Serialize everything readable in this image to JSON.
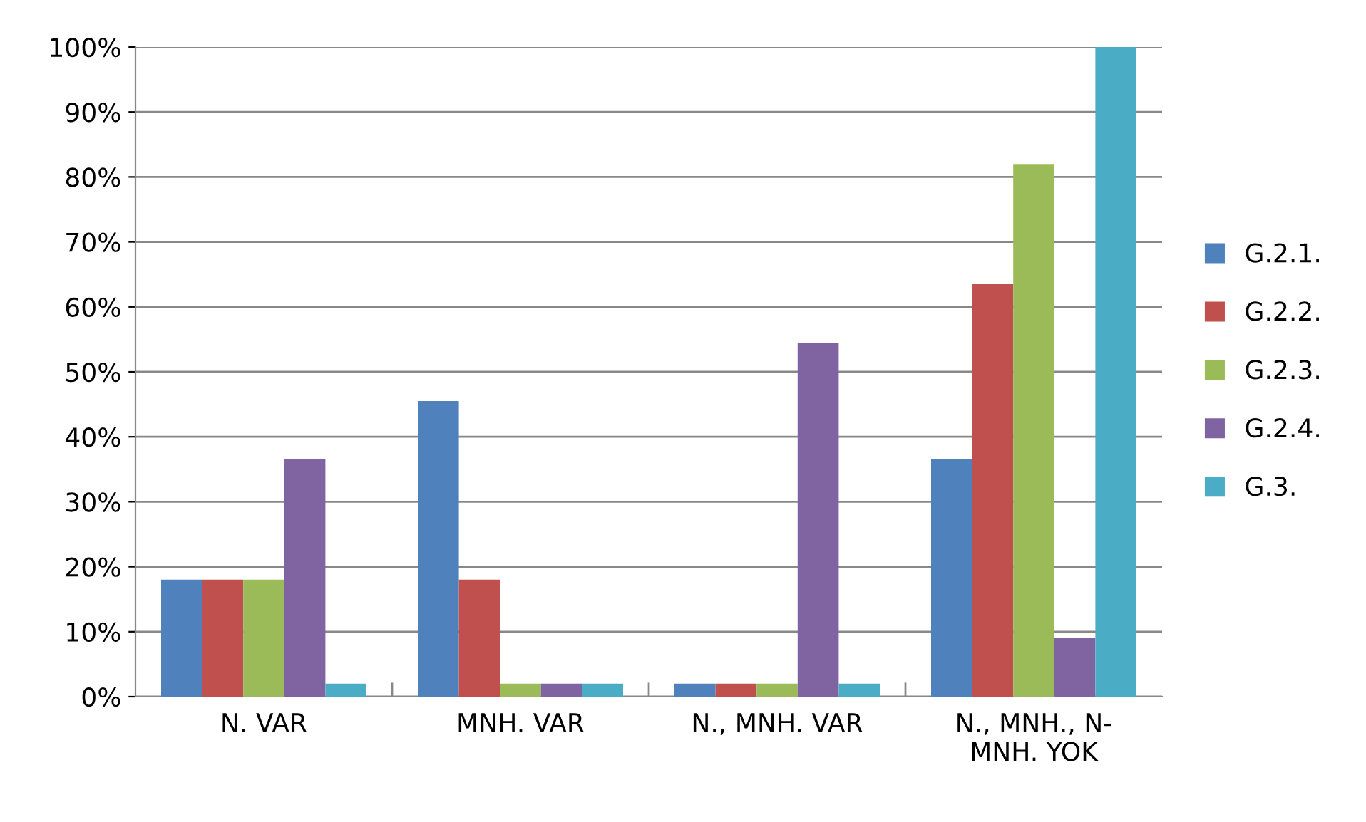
{
  "chart_data": {
    "type": "bar",
    "categories": [
      "N. VAR",
      "MNH. VAR",
      "N., MNH. VAR",
      "N., MNH., N-\nMNH. YOK"
    ],
    "series": [
      {
        "name": "G.2.1.",
        "color": "#4f81bd",
        "values": [
          18,
          45.5,
          2,
          36.5
        ]
      },
      {
        "name": "G.2.2.",
        "color": "#c0504d",
        "values": [
          18,
          18,
          2,
          63.5
        ]
      },
      {
        "name": "G.2.3.",
        "color": "#9bbb59",
        "values": [
          18,
          2,
          2,
          82
        ]
      },
      {
        "name": "G.2.4.",
        "color": "#8064a2",
        "values": [
          36.5,
          2,
          54.5,
          9
        ]
      },
      {
        "name": "G.3.",
        "color": "#4bacc6",
        "values": [
          2,
          2,
          2,
          100
        ]
      }
    ],
    "ylim": [
      0,
      100
    ],
    "yticks": [
      {
        "value": 0,
        "label": "0%"
      },
      {
        "value": 10,
        "label": "10%"
      },
      {
        "value": 20,
        "label": "20%"
      },
      {
        "value": 30,
        "label": "30%"
      },
      {
        "value": 40,
        "label": "40%"
      },
      {
        "value": 50,
        "label": "50%"
      },
      {
        "value": 60,
        "label": "60%"
      },
      {
        "value": 70,
        "label": "70%"
      },
      {
        "value": 80,
        "label": "80%"
      },
      {
        "value": 90,
        "label": "90%"
      },
      {
        "value": 100,
        "label": "100%"
      }
    ],
    "grid": "y",
    "legend": "right"
  }
}
